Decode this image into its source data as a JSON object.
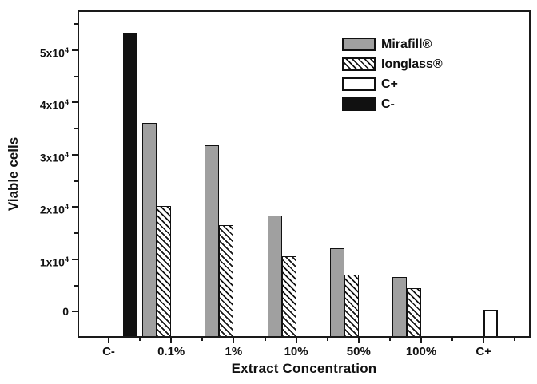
{
  "chart_data": {
    "type": "bar",
    "title": "",
    "xlabel": "Extract Concentration",
    "ylabel": "Viable cells",
    "categories": [
      "C-",
      "0.1%",
      "1%",
      "10%",
      "50%",
      "100%",
      "C+"
    ],
    "series": [
      {
        "name": "Mirafill®",
        "style": "gray",
        "values": [
          null,
          36100,
          31800,
          18400,
          12100,
          6600,
          null
        ]
      },
      {
        "name": "Ionglass®",
        "style": "hatch",
        "values": [
          null,
          20200,
          16600,
          10600,
          7100,
          4400,
          null
        ]
      },
      {
        "name": "C+",
        "style": "white",
        "values": [
          null,
          null,
          null,
          null,
          null,
          null,
          300
        ]
      },
      {
        "name": "C-",
        "style": "black",
        "values": [
          53400,
          null,
          null,
          null,
          null,
          null,
          null
        ]
      }
    ],
    "ylim": [
      -5000,
      57600
    ],
    "ytick_values": [
      0,
      10000,
      20000,
      30000,
      40000,
      50000
    ],
    "ytick_labels": [
      {
        "base": "0",
        "exp": ""
      },
      {
        "base": "1x10",
        "exp": "4"
      },
      {
        "base": "2x10",
        "exp": "4"
      },
      {
        "base": "3x10",
        "exp": "4"
      },
      {
        "base": "4x10",
        "exp": "4"
      },
      {
        "base": "5x10",
        "exp": "4"
      }
    ],
    "ytick_minor_values": [
      5000,
      15000,
      25000,
      35000,
      45000,
      55000
    ],
    "grid": false,
    "legend_position": "top-right-inside",
    "colors": {
      "gray": "#a0a0a0",
      "ink": "#111111",
      "frame": "#1a1a1a",
      "background": "#ffffff"
    }
  }
}
